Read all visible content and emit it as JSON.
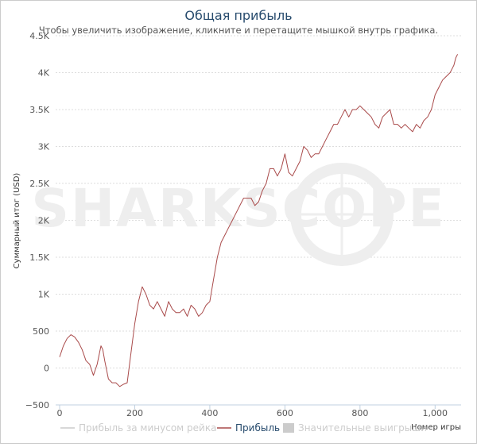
{
  "chart_data": {
    "type": "line",
    "title": "Общая прибыль",
    "subtitle": "Чтобы увеличить изображение, кликните и перетащите мышкой внутрь графика.",
    "xlabel": "Номер игры",
    "ylabel": "Суммарный итог (USD)",
    "xlim": [
      0,
      1065
    ],
    "ylim": [
      -500,
      4500
    ],
    "grid": true,
    "watermark": "SHARKSCOPE",
    "x_ticks": [
      {
        "value": 0,
        "label": "0"
      },
      {
        "value": 200,
        "label": "200"
      },
      {
        "value": 400,
        "label": "400"
      },
      {
        "value": 600,
        "label": "600"
      },
      {
        "value": 800,
        "label": "800"
      },
      {
        "value": 1000,
        "label": "1,000"
      }
    ],
    "y_ticks": [
      {
        "value": -500,
        "label": "−500"
      },
      {
        "value": 0,
        "label": "0"
      },
      {
        "value": 500,
        "label": "500"
      },
      {
        "value": 1000,
        "label": "1K"
      },
      {
        "value": 1500,
        "label": "1.5K"
      },
      {
        "value": 2000,
        "label": "2K"
      },
      {
        "value": 2500,
        "label": "2.5K"
      },
      {
        "value": 3000,
        "label": "3K"
      },
      {
        "value": 3500,
        "label": "3.5K"
      },
      {
        "value": 4000,
        "label": "4K"
      },
      {
        "value": 4500,
        "label": "4.5K"
      }
    ],
    "legend": [
      {
        "name": "Прибыль за минусом рейка",
        "active": false,
        "color": "#cccccc"
      },
      {
        "name": "Прибыль",
        "active": true,
        "color": "#a94a4a"
      },
      {
        "name": "Значительные выигрыши",
        "active": false,
        "color": "#cccccc"
      }
    ],
    "series": [
      {
        "name": "Прибыль",
        "color": "#a94a4a",
        "x": [
          0,
          10,
          20,
          30,
          40,
          50,
          60,
          70,
          80,
          90,
          100,
          110,
          115,
          120,
          130,
          140,
          150,
          160,
          170,
          180,
          190,
          200,
          210,
          220,
          230,
          240,
          250,
          260,
          270,
          280,
          290,
          300,
          310,
          320,
          330,
          340,
          350,
          360,
          370,
          380,
          390,
          400,
          410,
          420,
          430,
          440,
          450,
          460,
          470,
          480,
          490,
          500,
          510,
          520,
          530,
          540,
          550,
          560,
          570,
          580,
          590,
          600,
          610,
          620,
          630,
          640,
          650,
          660,
          670,
          680,
          690,
          700,
          710,
          720,
          730,
          740,
          750,
          760,
          770,
          780,
          790,
          800,
          810,
          820,
          830,
          840,
          850,
          860,
          870,
          880,
          890,
          900,
          910,
          920,
          930,
          940,
          950,
          960,
          970,
          980,
          990,
          1000,
          1010,
          1020,
          1030,
          1040,
          1050,
          1055,
          1060
        ],
        "values": [
          150,
          300,
          400,
          450,
          420,
          350,
          250,
          100,
          50,
          -100,
          50,
          300,
          250,
          100,
          -150,
          -200,
          -200,
          -250,
          -220,
          -200,
          200,
          600,
          900,
          1100,
          1000,
          850,
          800,
          900,
          800,
          700,
          900,
          800,
          750,
          750,
          800,
          700,
          850,
          800,
          700,
          750,
          850,
          900,
          1200,
          1500,
          1700,
          1800,
          1900,
          2000,
          2100,
          2200,
          2300,
          2300,
          2300,
          2200,
          2250,
          2400,
          2500,
          2700,
          2700,
          2600,
          2700,
          2900,
          2650,
          2600,
          2700,
          2800,
          3000,
          2950,
          2850,
          2900,
          2900,
          3000,
          3100,
          3200,
          3300,
          3300,
          3400,
          3500,
          3400,
          3500,
          3500,
          3550,
          3500,
          3450,
          3400,
          3300,
          3250,
          3400,
          3450,
          3500,
          3300,
          3300,
          3250,
          3300,
          3250,
          3200,
          3300,
          3250,
          3350,
          3400,
          3500,
          3700,
          3800,
          3900,
          3950,
          4000,
          4100,
          4200,
          4250
        ]
      }
    ]
  }
}
